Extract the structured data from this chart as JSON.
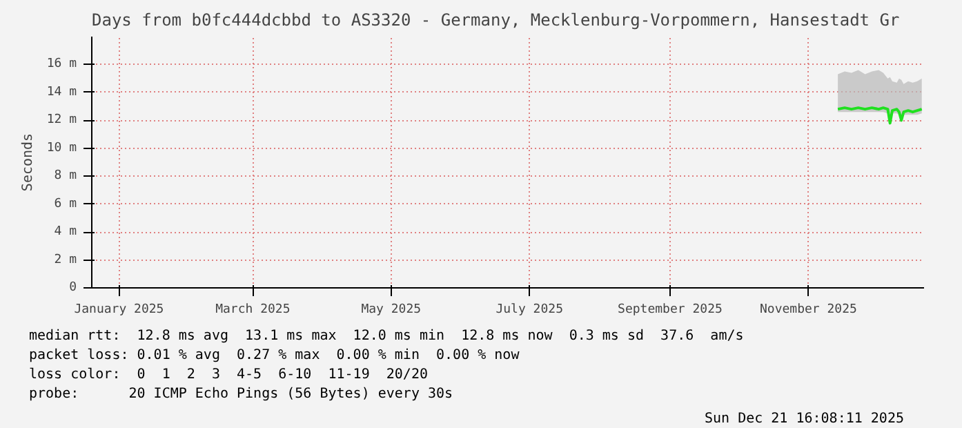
{
  "chart_data": {
    "type": "line",
    "title": "Days from b0fc444dcbbd to AS3320 - Germany, Mecklenburg-Vorpommern, Hansestadt Gr",
    "ylabel": "Seconds",
    "xlim": [
      "2024-12-20",
      "2025-12-22"
    ],
    "xticks": [
      {
        "value": "2025-01-01",
        "label": "January 2025"
      },
      {
        "value": "2025-03-01",
        "label": "March 2025"
      },
      {
        "value": "2025-05-01",
        "label": "May 2025"
      },
      {
        "value": "2025-07-01",
        "label": "July 2025"
      },
      {
        "value": "2025-09-01",
        "label": "September 2025"
      },
      {
        "value": "2025-11-01",
        "label": "November 2025"
      }
    ],
    "ylim": [
      0,
      18
    ],
    "yticks": [
      0,
      {
        "value": 2,
        "label": "2 m"
      },
      {
        "value": 4,
        "label": "4 m"
      },
      {
        "value": 6,
        "label": "6 m"
      },
      {
        "value": 8,
        "label": "8 m"
      },
      {
        "value": 10,
        "label": "10 m"
      },
      {
        "value": 12,
        "label": "12 m"
      },
      {
        "value": 14,
        "label": "14 m"
      },
      {
        "value": 16,
        "label": "16 m"
      }
    ],
    "grid": true,
    "series": [
      {
        "color": "#20e020",
        "x": [
          "2025-11-14",
          "2025-11-17",
          "2025-11-20",
          "2025-11-23",
          "2025-11-26",
          "2025-11-29",
          "2025-12-02",
          "2025-12-04",
          "2025-12-06",
          "2025-12-07",
          "2025-12-08",
          "2025-12-10",
          "2025-12-11",
          "2025-12-12",
          "2025-12-13",
          "2025-12-15",
          "2025-12-17",
          "2025-12-19",
          "2025-12-21"
        ],
        "values": [
          12.8,
          12.9,
          12.8,
          12.9,
          12.8,
          12.9,
          12.8,
          12.9,
          12.8,
          11.8,
          12.7,
          12.8,
          12.6,
          12.0,
          12.6,
          12.7,
          12.6,
          12.7,
          12.8
        ],
        "lower": [
          12.6,
          12.6,
          12.6,
          12.6,
          12.6,
          12.6,
          12.6,
          12.6,
          12.5,
          11.8,
          12.5,
          12.5,
          12.4,
          12.0,
          12.4,
          12.4,
          12.4,
          12.4,
          12.5
        ],
        "upper": [
          15.3,
          15.5,
          15.4,
          15.6,
          15.3,
          15.5,
          15.6,
          15.4,
          15.0,
          15.1,
          14.8,
          14.7,
          15.0,
          14.9,
          14.6,
          14.8,
          14.7,
          14.8,
          15.0
        ]
      }
    ],
    "annotations": [
      "median rtt:  12.8 ms avg  13.1 ms max  12.0 ms min  12.8 ms now  0.3 ms sd  37.6   am/s",
      "packet loss: 0.01 % avg  0.27 % max  0.00 % min  0.00 % now",
      "loss color:  0  1  2  3  4-5  6-10  11-19  20/20",
      "probe:       20 ICMP Echo Pings (56 Bytes) every 30s",
      "Sun Dec 21 16:08:11 2025"
    ]
  }
}
